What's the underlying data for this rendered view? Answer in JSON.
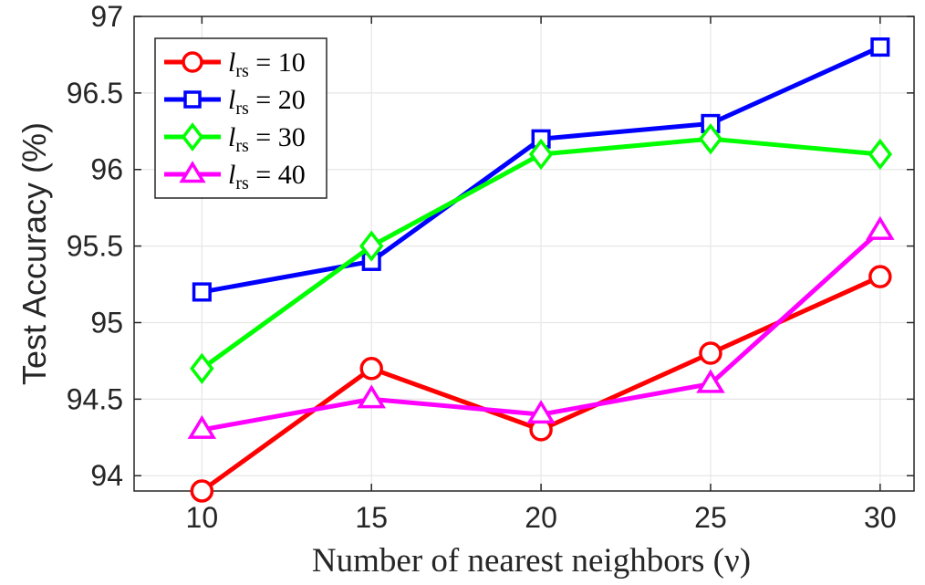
{
  "chart_data": {
    "type": "line",
    "title": "",
    "xlabel": "Number of nearest neighbors (ν)",
    "ylabel": "Test Accuracy (%)",
    "x": [
      10,
      15,
      20,
      25,
      30
    ],
    "xlim": [
      8,
      31
    ],
    "ylim": [
      93.9,
      97
    ],
    "xticks": [
      10,
      15,
      20,
      25,
      30
    ],
    "xtick_labels": [
      "10",
      "15",
      "20",
      "25",
      "30"
    ],
    "yticks": [
      94,
      94.5,
      95,
      95.5,
      96,
      96.5,
      97
    ],
    "ytick_labels": [
      "94",
      "94.5",
      "95",
      "95.5",
      "96",
      "96.5",
      "97"
    ],
    "grid": true,
    "legend_position": "top-left",
    "series": [
      {
        "name": "l_rs = 10",
        "legend_var": "l",
        "legend_sub": "rs",
        "legend_value": "= 10",
        "color": "#ff0000",
        "marker": "circle",
        "values": [
          93.9,
          94.7,
          94.3,
          94.8,
          95.3
        ]
      },
      {
        "name": "l_rs = 20",
        "legend_var": "l",
        "legend_sub": "rs",
        "legend_value": "= 20",
        "color": "#0000ff",
        "marker": "square",
        "values": [
          95.2,
          95.4,
          96.2,
          96.3,
          96.8
        ]
      },
      {
        "name": "l_rs = 30",
        "legend_var": "l",
        "legend_sub": "rs",
        "legend_value": "= 30",
        "color": "#00ff00",
        "marker": "diamond",
        "values": [
          94.7,
          95.5,
          96.1,
          96.2,
          96.1
        ]
      },
      {
        "name": "l_rs = 40",
        "legend_var": "l",
        "legend_sub": "rs",
        "legend_value": "= 40",
        "color": "#ff00ff",
        "marker": "triangle",
        "values": [
          94.3,
          94.5,
          94.4,
          94.6,
          95.6
        ]
      }
    ]
  }
}
